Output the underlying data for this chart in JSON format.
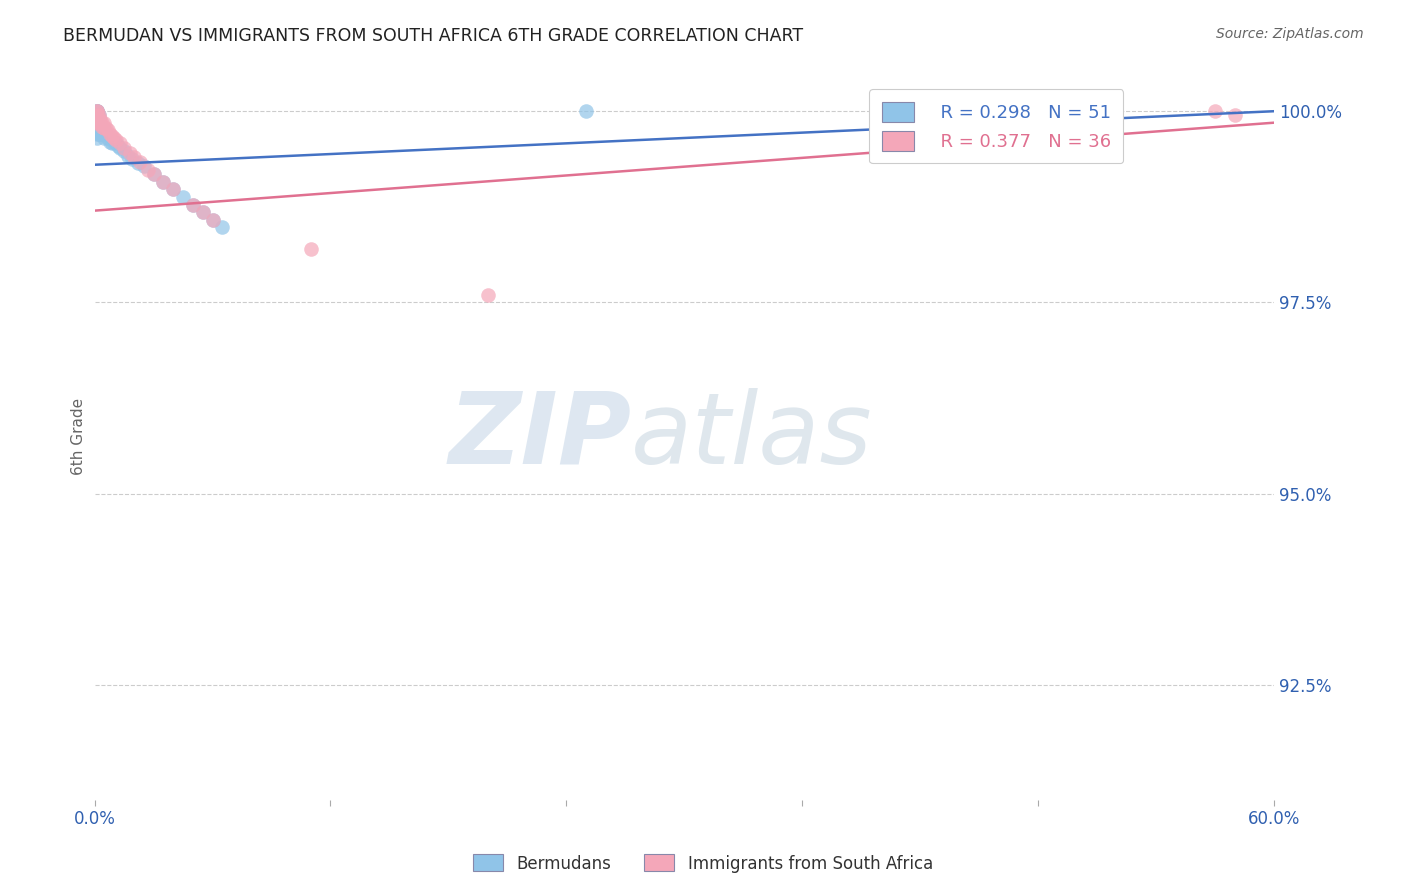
{
  "title": "BERMUDAN VS IMMIGRANTS FROM SOUTH AFRICA 6TH GRADE CORRELATION CHART",
  "source": "Source: ZipAtlas.com",
  "ylabel": "6th Grade",
  "legend_blue_r": "R = 0.298",
  "legend_blue_n": "N = 51",
  "legend_pink_r": "R = 0.377",
  "legend_pink_n": "N = 36",
  "legend_label_blue": "Bermudans",
  "legend_label_pink": "Immigrants from South Africa",
  "blue_color": "#90c4e8",
  "pink_color": "#f4a7b9",
  "blue_line_color": "#4472c4",
  "pink_line_color": "#e07090",
  "background_color": "#ffffff",
  "watermark_zip": "ZIP",
  "watermark_atlas": "atlas",
  "xlim": [
    0.0,
    0.6
  ],
  "ylim": [
    0.91,
    1.005
  ],
  "yticks": [
    1.0,
    0.975,
    0.95,
    0.925
  ],
  "ytick_labels": [
    "100.0%",
    "97.5%",
    "95.0%",
    "92.5%"
  ],
  "xtick_positions": [
    0.0,
    0.12,
    0.24,
    0.36,
    0.48,
    0.6
  ],
  "blue_points_x": [
    0.001,
    0.001,
    0.001,
    0.001,
    0.001,
    0.001,
    0.001,
    0.001,
    0.001,
    0.001,
    0.001,
    0.001,
    0.001,
    0.001,
    0.002,
    0.002,
    0.002,
    0.002,
    0.002,
    0.002,
    0.003,
    0.003,
    0.003,
    0.003,
    0.004,
    0.004,
    0.005,
    0.005,
    0.005,
    0.006,
    0.007,
    0.008,
    0.009,
    0.01,
    0.011,
    0.012,
    0.013,
    0.015,
    0.017,
    0.019,
    0.022,
    0.025,
    0.03,
    0.035,
    0.04,
    0.045,
    0.05,
    0.055,
    0.06,
    0.065,
    0.25
  ],
  "blue_points_y": [
    1.0,
    1.0,
    1.0,
    0.9995,
    0.9995,
    0.999,
    0.999,
    0.9985,
    0.9985,
    0.998,
    0.9975,
    0.9975,
    0.997,
    0.9965,
    0.9995,
    0.999,
    0.9985,
    0.998,
    0.9975,
    0.997,
    0.9985,
    0.998,
    0.9975,
    0.997,
    0.9975,
    0.997,
    0.9975,
    0.997,
    0.9965,
    0.997,
    0.9965,
    0.996,
    0.9958,
    0.996,
    0.9958,
    0.9955,
    0.9952,
    0.9948,
    0.9942,
    0.9938,
    0.9932,
    0.9928,
    0.9918,
    0.9908,
    0.9898,
    0.9888,
    0.9878,
    0.9868,
    0.9858,
    0.9848,
    1.0
  ],
  "pink_points_x": [
    0.001,
    0.001,
    0.001,
    0.001,
    0.001,
    0.002,
    0.002,
    0.002,
    0.003,
    0.003,
    0.004,
    0.004,
    0.005,
    0.005,
    0.006,
    0.007,
    0.008,
    0.009,
    0.01,
    0.011,
    0.013,
    0.015,
    0.018,
    0.02,
    0.023,
    0.027,
    0.03,
    0.035,
    0.04,
    0.05,
    0.055,
    0.06,
    0.11,
    0.2,
    0.57,
    0.58
  ],
  "pink_points_y": [
    1.0,
    1.0,
    0.9995,
    0.999,
    0.9985,
    0.9995,
    0.999,
    0.9985,
    0.999,
    0.9985,
    0.9985,
    0.998,
    0.9985,
    0.9978,
    0.9978,
    0.9975,
    0.997,
    0.9968,
    0.9965,
    0.9962,
    0.9958,
    0.9952,
    0.9945,
    0.994,
    0.9933,
    0.9923,
    0.9918,
    0.9908,
    0.9898,
    0.9878,
    0.9868,
    0.9858,
    0.982,
    0.976,
    1.0,
    0.9995
  ],
  "blue_trendline_x": [
    0.0,
    0.6
  ],
  "blue_trendline_y": [
    0.993,
    1.0
  ],
  "pink_trendline_x": [
    0.0,
    0.6
  ],
  "pink_trendline_y": [
    0.987,
    0.9985
  ]
}
